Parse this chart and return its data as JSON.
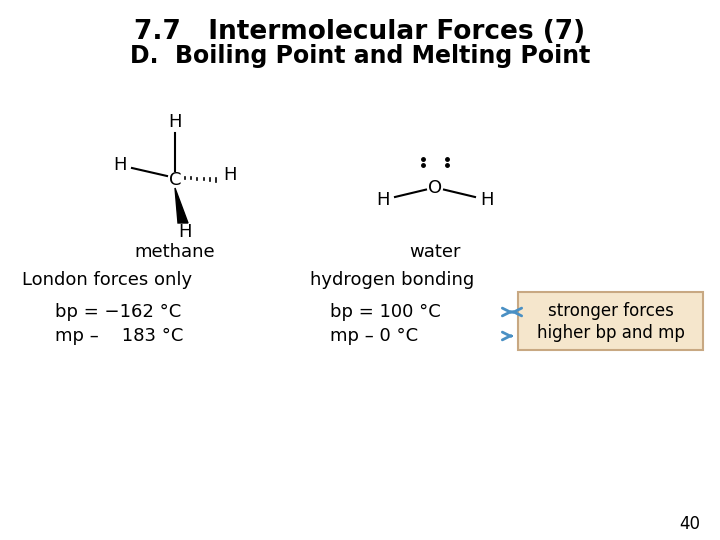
{
  "title_line1": "7.7   Intermolecular Forces (7)",
  "title_line2": "D.  Boiling Point and Melting Point",
  "bg_color": "#ffffff",
  "title_fontsize": 19,
  "subtitle_fontsize": 17,
  "label_methane": "methane",
  "label_water": "water",
  "label_london": "London forces only",
  "label_hbond": "hydrogen bonding",
  "bp_methane": "bp = −162 °C",
  "mp_methane": "mp –    183 °C",
  "bp_water": "bp = 100 °C",
  "mp_water": "mp – 0 °C",
  "box_text_line1": "stronger forces",
  "box_text_line2": "higher bp and mp",
  "box_color": "#f5e6cc",
  "box_edge_color": "#c8a882",
  "arrow_color": "#4a90c4",
  "page_number": "40",
  "text_color": "#000000",
  "mol_fontsize": 13,
  "body_fontsize": 13
}
